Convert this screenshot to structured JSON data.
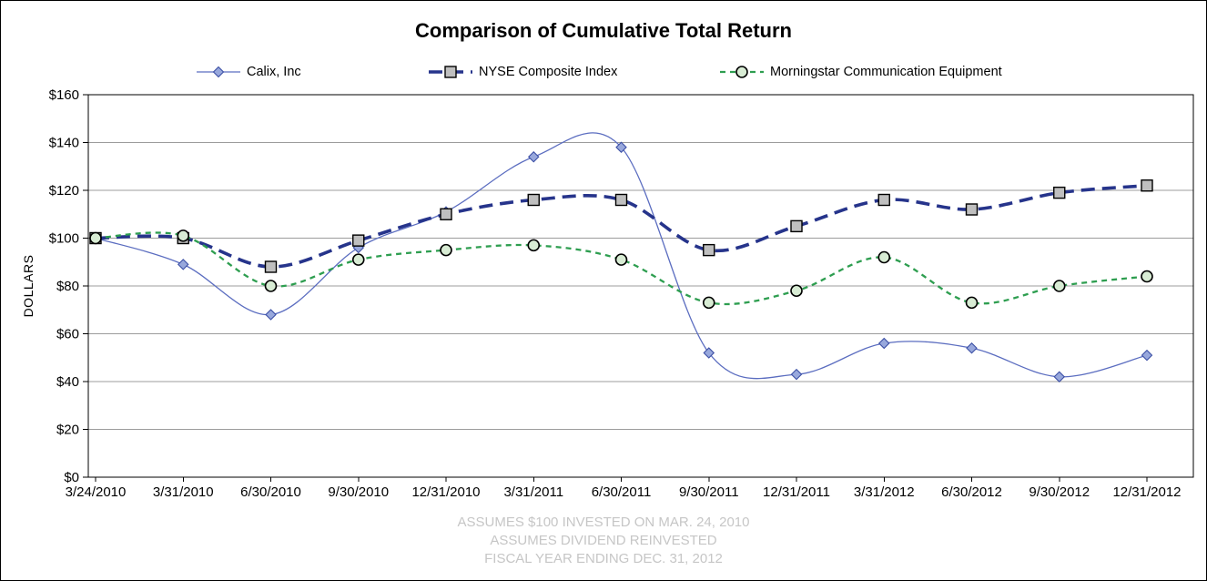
{
  "title": "Comparison of Cumulative Total Return",
  "y_axis_label": "DOLLARS",
  "footer_lines": [
    "ASSUMES $100 INVESTED ON MAR. 24, 2010",
    "ASSUMES DIVIDEND REINVESTED",
    "FISCAL YEAR ENDING DEC. 31, 2012"
  ],
  "colors": {
    "grid": "#9c9c9c",
    "axis": "#000000",
    "footer_text": "#c6c6c6"
  },
  "chart_data": {
    "type": "line",
    "categories": [
      "3/24/2010",
      "3/31/2010",
      "6/30/2010",
      "9/30/2010",
      "12/31/2010",
      "3/31/2011",
      "6/30/2011",
      "9/30/2011",
      "12/31/2011",
      "3/31/2012",
      "6/30/2012",
      "9/30/2012",
      "12/31/2012"
    ],
    "series": [
      {
        "name": "Calix, Inc",
        "marker": "diamond",
        "line_style": "solid",
        "line_width": 1.3,
        "color": "#5b6dc0",
        "marker_fill": "#98a8dc",
        "marker_stroke": "#3b4fa5",
        "values": [
          100,
          89,
          68,
          96,
          111,
          134,
          138,
          52,
          43,
          56,
          54,
          42,
          51
        ]
      },
      {
        "name": "NYSE Composite Index",
        "marker": "square",
        "line_style": "long-dash",
        "line_width": 3.6,
        "color": "#26348b",
        "marker_fill": "#bfbfbf",
        "marker_stroke": "#000000",
        "values": [
          100,
          100,
          88,
          99,
          110,
          116,
          116,
          95,
          105,
          116,
          112,
          119,
          122
        ]
      },
      {
        "name": "Morningstar Communication Equipment",
        "marker": "circle",
        "line_style": "short-dash",
        "line_width": 2.3,
        "color": "#2e9e50",
        "marker_fill": "#d8ecd4",
        "marker_stroke": "#000000",
        "values": [
          100,
          101,
          80,
          91,
          95,
          97,
          91,
          73,
          78,
          92,
          73,
          80,
          84
        ]
      }
    ],
    "ylim": [
      0,
      160
    ],
    "ytick_step": 20,
    "ytick_labels": [
      "$0",
      "$20",
      "$40",
      "$60",
      "$80",
      "$100",
      "$120",
      "$140",
      "$160"
    ],
    "grid": true,
    "legend_position": "top"
  }
}
